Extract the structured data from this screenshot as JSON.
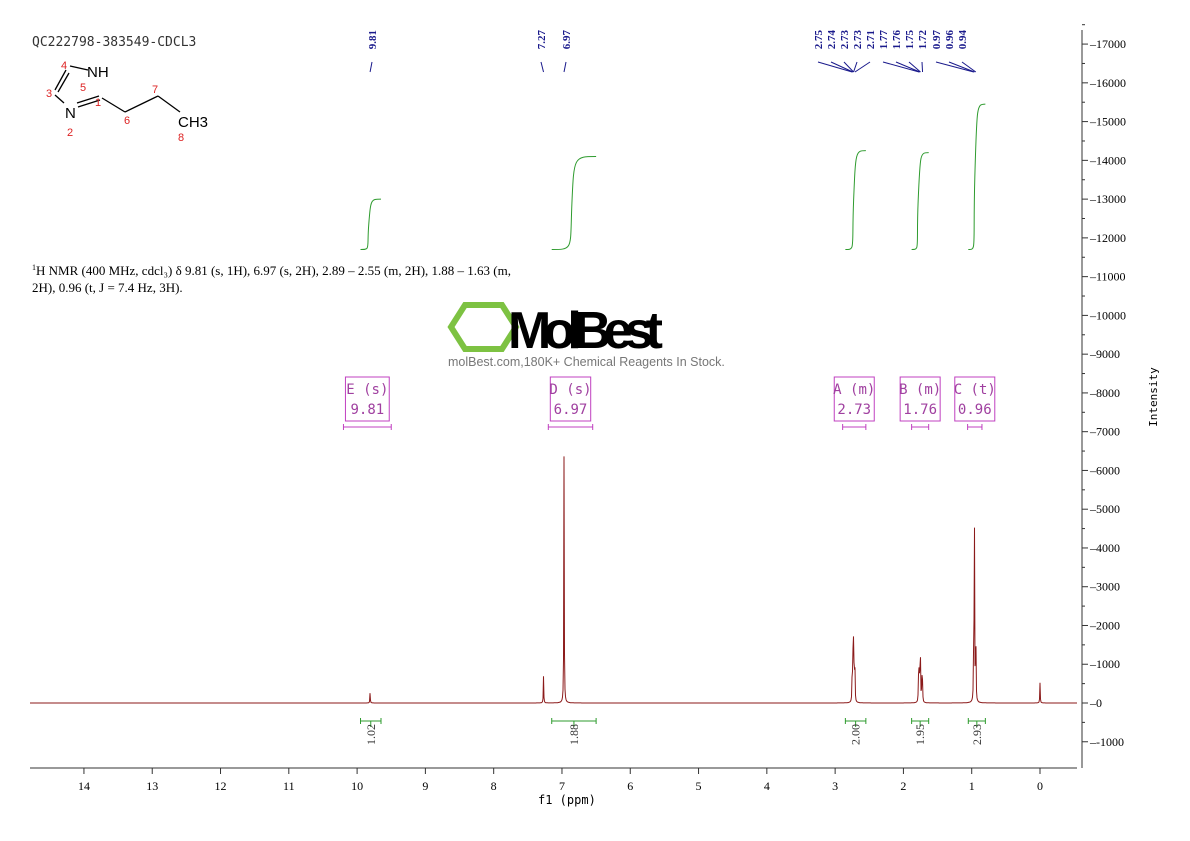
{
  "sample_id": "QC222798-383549-CDCL3",
  "structure": {
    "atoms": [
      "NH",
      "N",
      "CH3"
    ],
    "numbers": [
      "1",
      "2",
      "3",
      "4",
      "5",
      "6",
      "7",
      "8"
    ]
  },
  "description": {
    "line1": "H NMR (400 MHz, cdcl₃) δ 9.81 (s, 1H), 6.97 (s, 2H), 2.89 – 2.55 (m, 2H), 1.88 – 1.63 (m,",
    "line2": "2H), 0.96 (t, J = 7.4 Hz, 3H).",
    "sup": "1"
  },
  "watermark": {
    "brand": "MolBest",
    "tagline": "molBest.com,180K+ Chemical Reagents In Stock.",
    "color": "#7dc242"
  },
  "chart_data": {
    "type": "line",
    "xlabel": "f1 (ppm)",
    "ylabel": "Intensity",
    "xlim": [
      14.8,
      -0.55
    ],
    "ylim": [
      -1700,
      17500
    ],
    "xticks": [
      14,
      13,
      12,
      11,
      10,
      9,
      8,
      7,
      6,
      5,
      4,
      3,
      2,
      1,
      0
    ],
    "yticks": [
      -1000,
      0,
      1000,
      2000,
      3000,
      4000,
      5000,
      6000,
      7000,
      8000,
      9000,
      10000,
      11000,
      12000,
      13000,
      14000,
      15000,
      16000,
      17000
    ],
    "line_color": "#8b1a1a",
    "integral_color": "#2e9b2e",
    "label_color": "#1a1a8c",
    "multiplet_color": "#c040c0",
    "peaks": [
      {
        "ppm": 9.81,
        "h": 280
      },
      {
        "ppm": 7.27,
        "h": 700
      },
      {
        "ppm": 6.97,
        "h": 6400
      },
      {
        "ppm": 2.75,
        "h": 900
      },
      {
        "ppm": 2.74,
        "h": 1300
      },
      {
        "ppm": 2.73,
        "h": 1500
      },
      {
        "ppm": 2.72,
        "h": 1200
      },
      {
        "ppm": 2.71,
        "h": 800
      },
      {
        "ppm": 1.78,
        "h": 600
      },
      {
        "ppm": 1.77,
        "h": 900
      },
      {
        "ppm": 1.76,
        "h": 1100
      },
      {
        "ppm": 1.75,
        "h": 1000
      },
      {
        "ppm": 1.73,
        "h": 800
      },
      {
        "ppm": 1.72,
        "h": 500
      },
      {
        "ppm": 0.97,
        "h": 2200
      },
      {
        "ppm": 0.96,
        "h": 4500
      },
      {
        "ppm": 0.94,
        "h": 2200
      },
      {
        "ppm": 0.0,
        "h": 520
      }
    ],
    "peak_labels": [
      [
        "9.81"
      ],
      [
        "7.27",
        "6.97"
      ],
      [
        "2.75",
        "2.74",
        "2.73",
        "2.73",
        "2.71",
        "1.77",
        "1.76",
        "1.75",
        "1.72",
        "0.97",
        "0.96",
        "0.94"
      ]
    ],
    "peak_label_ppm": [
      9.81,
      7.27,
      6.97,
      2.75,
      2.74,
      2.73,
      2.73,
      2.71,
      1.77,
      1.76,
      1.75,
      1.72,
      0.97,
      0.96,
      0.94
    ],
    "multiplets": [
      {
        "label": "E (s)",
        "value": "9.81",
        "from": 10.2,
        "to": 9.5
      },
      {
        "label": "D (s)",
        "value": "6.97",
        "from": 7.2,
        "to": 6.55
      },
      {
        "label": "A (m)",
        "value": "2.73",
        "from": 2.89,
        "to": 2.55
      },
      {
        "label": "B (m)",
        "value": "1.76",
        "from": 1.88,
        "to": 1.63
      },
      {
        "label": "C (t)",
        "value": "0.96",
        "from": 1.06,
        "to": 0.85
      }
    ],
    "integrals": [
      {
        "value": "1.02",
        "from": 9.95,
        "to": 9.65,
        "top": 13000
      },
      {
        "value": "1.88",
        "from": 7.15,
        "to": 6.5,
        "top": 14100
      },
      {
        "value": "2.00",
        "from": 2.85,
        "to": 2.55,
        "top": 14250
      },
      {
        "value": "1.95",
        "from": 1.88,
        "to": 1.63,
        "top": 14200
      },
      {
        "value": "2.93",
        "from": 1.05,
        "to": 0.8,
        "top": 15450
      }
    ]
  }
}
